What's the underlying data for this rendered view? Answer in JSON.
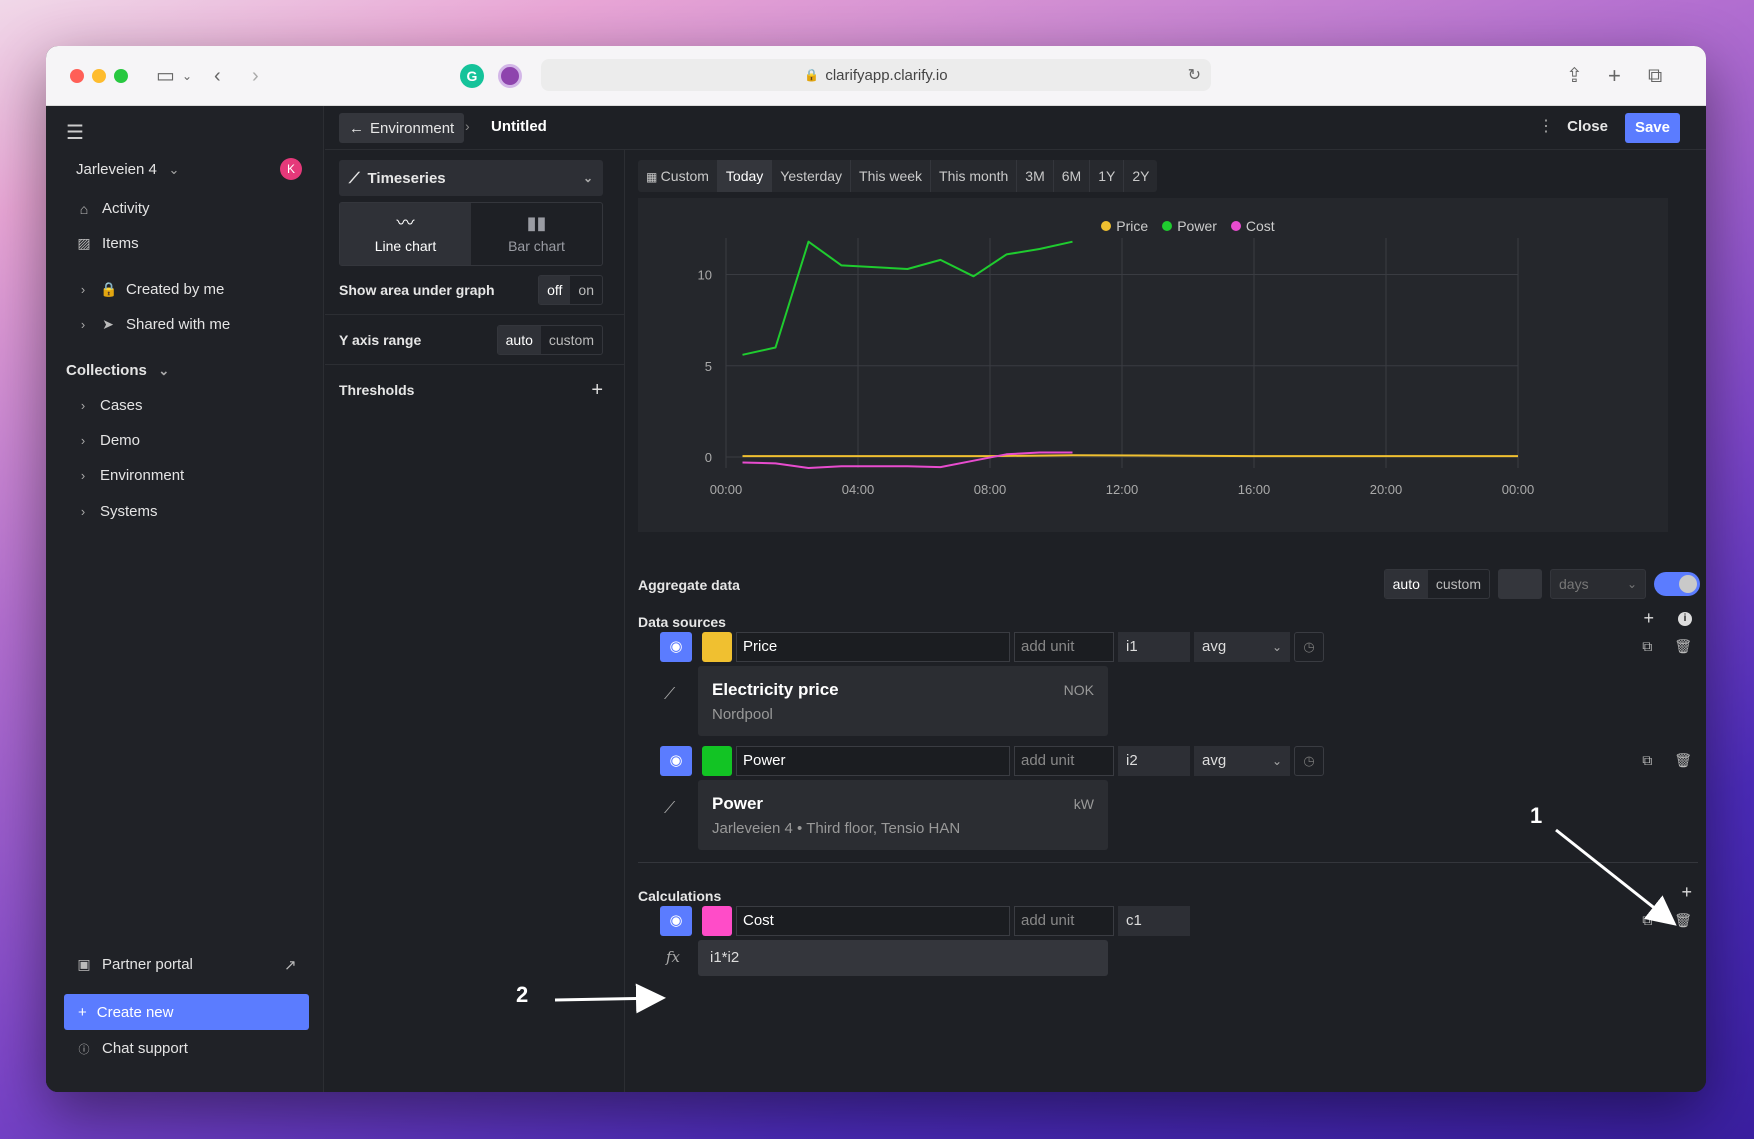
{
  "browser": {
    "url": "clarifyapp.clarify.io",
    "extensions": {
      "grammarly_letter": "G"
    }
  },
  "sidebar": {
    "org_name": "Jarleveien 4",
    "avatar_letter": "K",
    "nav": [
      {
        "label": "Activity"
      },
      {
        "label": "Items"
      },
      {
        "label": "Created by me"
      },
      {
        "label": "Shared with me"
      }
    ],
    "collections_title": "Collections",
    "collections": [
      {
        "label": "Cases"
      },
      {
        "label": "Demo"
      },
      {
        "label": "Environment"
      },
      {
        "label": "Systems"
      }
    ],
    "partner_portal": "Partner portal",
    "create_new": "Create new",
    "chat_support": "Chat support"
  },
  "topbar": {
    "back_label": "Environment",
    "title": "Untitled",
    "close_label": "Close",
    "save_label": "Save"
  },
  "settings": {
    "type_select": "Timeseries",
    "chart_types": [
      {
        "label": "Line chart",
        "active": true
      },
      {
        "label": "Bar chart",
        "active": false
      }
    ],
    "area_label": "Show area under graph",
    "area_off": "off",
    "area_on": "on",
    "yrange_label": "Y axis range",
    "yrange_auto": "auto",
    "yrange_custom": "custom",
    "thresholds_label": "Thresholds"
  },
  "time_ranges": [
    {
      "label": "Custom",
      "selected": false
    },
    {
      "label": "Today",
      "selected": true
    },
    {
      "label": "Yesterday",
      "selected": false
    },
    {
      "label": "This week",
      "selected": false
    },
    {
      "label": "This month",
      "selected": false
    },
    {
      "label": "3M",
      "selected": false
    },
    {
      "label": "6M",
      "selected": false
    },
    {
      "label": "1Y",
      "selected": false
    },
    {
      "label": "2Y",
      "selected": false
    }
  ],
  "chart_data": {
    "type": "line",
    "x_ticks": [
      "00:00",
      "04:00",
      "08:00",
      "12:00",
      "16:00",
      "20:00",
      "00:00"
    ],
    "y_ticks": [
      0,
      5,
      10
    ],
    "xlim": [
      0,
      24
    ],
    "ylim": [
      -0.6,
      12
    ],
    "grid": true,
    "legend_position": "top",
    "series": [
      {
        "name": "Price",
        "color": "#f0c030",
        "x": [
          0.5,
          8,
          10.5,
          16,
          24
        ],
        "y": [
          0.05,
          0.05,
          0.1,
          0.05,
          0.05
        ]
      },
      {
        "name": "Power",
        "color": "#1fcc2f",
        "x": [
          0.5,
          1.5,
          2.5,
          3.5,
          5.5,
          6.5,
          7.5,
          8.5,
          9.5,
          10.5
        ],
        "y": [
          5.6,
          6.0,
          11.8,
          10.5,
          10.3,
          10.8,
          9.9,
          11.1,
          11.4,
          11.8
        ]
      },
      {
        "name": "Cost",
        "color": "#e84ccf",
        "x": [
          0.5,
          1.5,
          2.5,
          3.5,
          5.5,
          6.5,
          7.5,
          8.5,
          9.5,
          10.5
        ],
        "y": [
          -0.3,
          -0.35,
          -0.6,
          -0.5,
          -0.5,
          -0.55,
          -0.2,
          0.15,
          0.25,
          0.25
        ]
      }
    ]
  },
  "aggregate": {
    "title": "Aggregate data",
    "auto": "auto",
    "custom": "custom",
    "days_placeholder": "days"
  },
  "data_sources": {
    "title": "Data sources",
    "items": [
      {
        "name": "Price",
        "color": "#f0c030",
        "unit_placeholder": "add unit",
        "id": "i1",
        "agg": "avg",
        "card_title": "Electricity price",
        "card_sub": "Nordpool",
        "card_unit": "NOK"
      },
      {
        "name": "Power",
        "color": "#12c424",
        "unit_placeholder": "add unit",
        "id": "i2",
        "agg": "avg",
        "card_title": "Power",
        "card_sub": "Jarleveien 4 • Third floor, Tensio HAN",
        "card_unit": "kW"
      }
    ]
  },
  "calculations": {
    "title": "Calculations",
    "items": [
      {
        "name": "Cost",
        "color": "#ff4cc8",
        "unit_placeholder": "add unit",
        "id": "c1",
        "formula": "i1*i2"
      }
    ]
  },
  "annotations": {
    "one": "1",
    "two": "2"
  }
}
